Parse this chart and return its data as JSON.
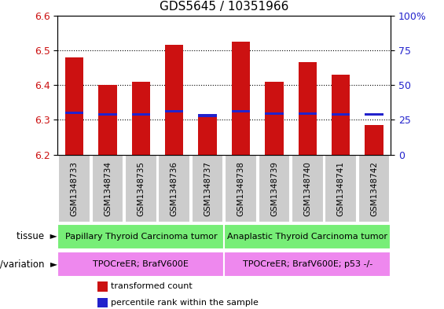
{
  "title": "GDS5645 / 10351966",
  "samples": [
    "GSM1348733",
    "GSM1348734",
    "GSM1348735",
    "GSM1348736",
    "GSM1348737",
    "GSM1348738",
    "GSM1348739",
    "GSM1348740",
    "GSM1348741",
    "GSM1348742"
  ],
  "bar_values": [
    6.48,
    6.4,
    6.41,
    6.515,
    6.31,
    6.525,
    6.41,
    6.465,
    6.43,
    6.285
  ],
  "blue_values": [
    6.32,
    6.315,
    6.315,
    6.325,
    6.312,
    6.325,
    6.318,
    6.318,
    6.315,
    6.315
  ],
  "ymin": 6.2,
  "ymax": 6.6,
  "bar_color": "#cc1111",
  "blue_color": "#2222cc",
  "bar_width": 0.55,
  "tissue_labels": [
    "Papillary Thyroid Carcinoma tumor",
    "Anaplastic Thyroid Carcinoma tumor"
  ],
  "tissue_group_sizes": [
    5,
    5
  ],
  "tissue_color": "#77ee77",
  "genotype_labels": [
    "TPOCreER; BrafV600E",
    "TPOCreER; BrafV600E; p53 -/-"
  ],
  "genotype_color": "#ee88ee",
  "xticklabel_bg": "#cccccc",
  "ylabel_left_color": "#cc1111",
  "ylabel_right_color": "#2222cc",
  "bg_color": "#ffffff"
}
